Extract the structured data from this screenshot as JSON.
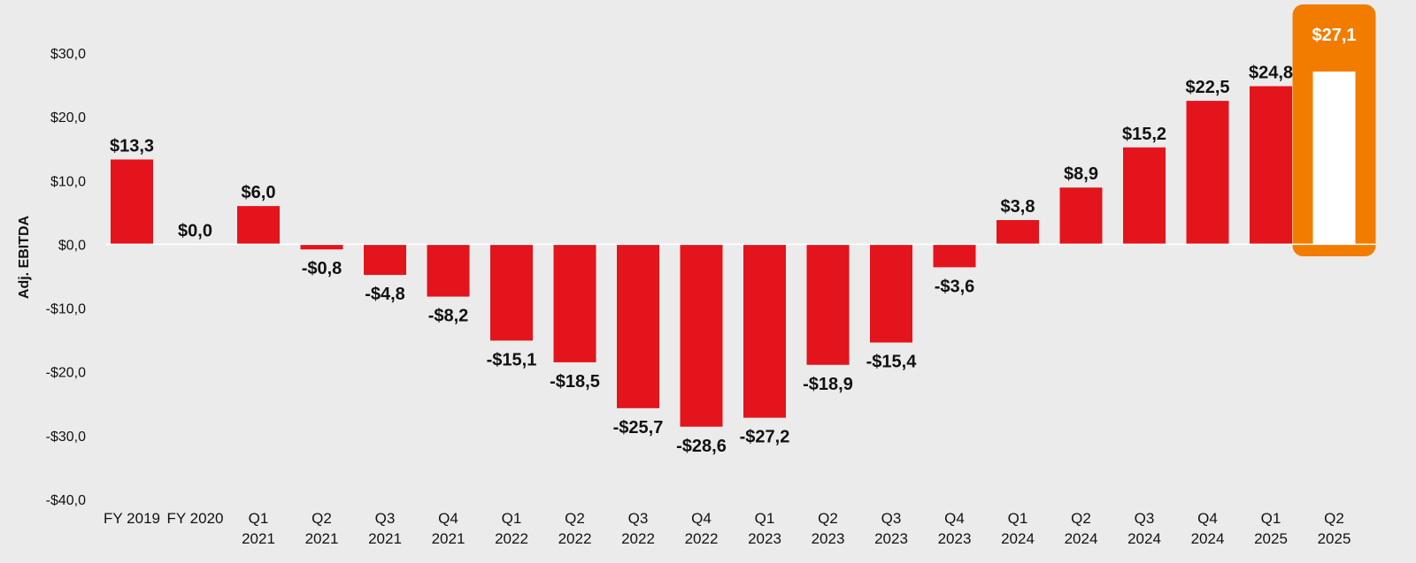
{
  "chart_data": {
    "type": "bar",
    "ylabel": "Adj. EBITDA",
    "ylim": [
      -40,
      30
    ],
    "yticks": [
      30,
      20,
      10,
      0,
      -10,
      -20,
      -30,
      -40
    ],
    "ytick_labels": [
      "$30,0",
      "$20,0",
      "$10,0",
      "$0,0",
      "-$10,0",
      "-$20,0",
      "-$30,0",
      "-$40,0"
    ],
    "categories": [
      [
        "FY 2019"
      ],
      [
        "FY 2020"
      ],
      [
        "Q1",
        "2021"
      ],
      [
        "Q2",
        "2021"
      ],
      [
        "Q3",
        "2021"
      ],
      [
        "Q4",
        "2021"
      ],
      [
        "Q1",
        "2022"
      ],
      [
        "Q2",
        "2022"
      ],
      [
        "Q3",
        "2022"
      ],
      [
        "Q4",
        "2022"
      ],
      [
        "Q1",
        "2023"
      ],
      [
        "Q2",
        "2023"
      ],
      [
        "Q3",
        "2023"
      ],
      [
        "Q4",
        "2023"
      ],
      [
        "Q1",
        "2024"
      ],
      [
        "Q2",
        "2024"
      ],
      [
        "Q3",
        "2024"
      ],
      [
        "Q4",
        "2024"
      ],
      [
        "Q1",
        "2025"
      ],
      [
        "Q2",
        "2025"
      ]
    ],
    "values": [
      13.3,
      0.0,
      6.0,
      -0.8,
      -4.8,
      -8.2,
      -15.1,
      -18.5,
      -25.7,
      -28.6,
      -27.2,
      -18.9,
      -15.4,
      -3.6,
      3.8,
      8.9,
      15.2,
      22.5,
      24.8,
      27.1
    ],
    "data_labels": [
      "$13,3",
      "$0,0",
      "$6,0",
      "-$0,8",
      "-$4,8",
      "-$8,2",
      "-$15,1",
      "-$18,5",
      "-$25,7",
      "-$28,6",
      "-$27,2",
      "-$18,9",
      "-$15,4",
      "-$3,6",
      "$3,8",
      "$8,9",
      "$15,2",
      "$22,5",
      "$24,8",
      "$27,1"
    ],
    "highlight_index": 19,
    "grid": false,
    "colors": {
      "bar": "#e3141b",
      "highlight_bar": "#ffffff",
      "highlight_frame": "#f27c00",
      "background": "#ebebeb",
      "zero_line": "#ffffff"
    }
  }
}
